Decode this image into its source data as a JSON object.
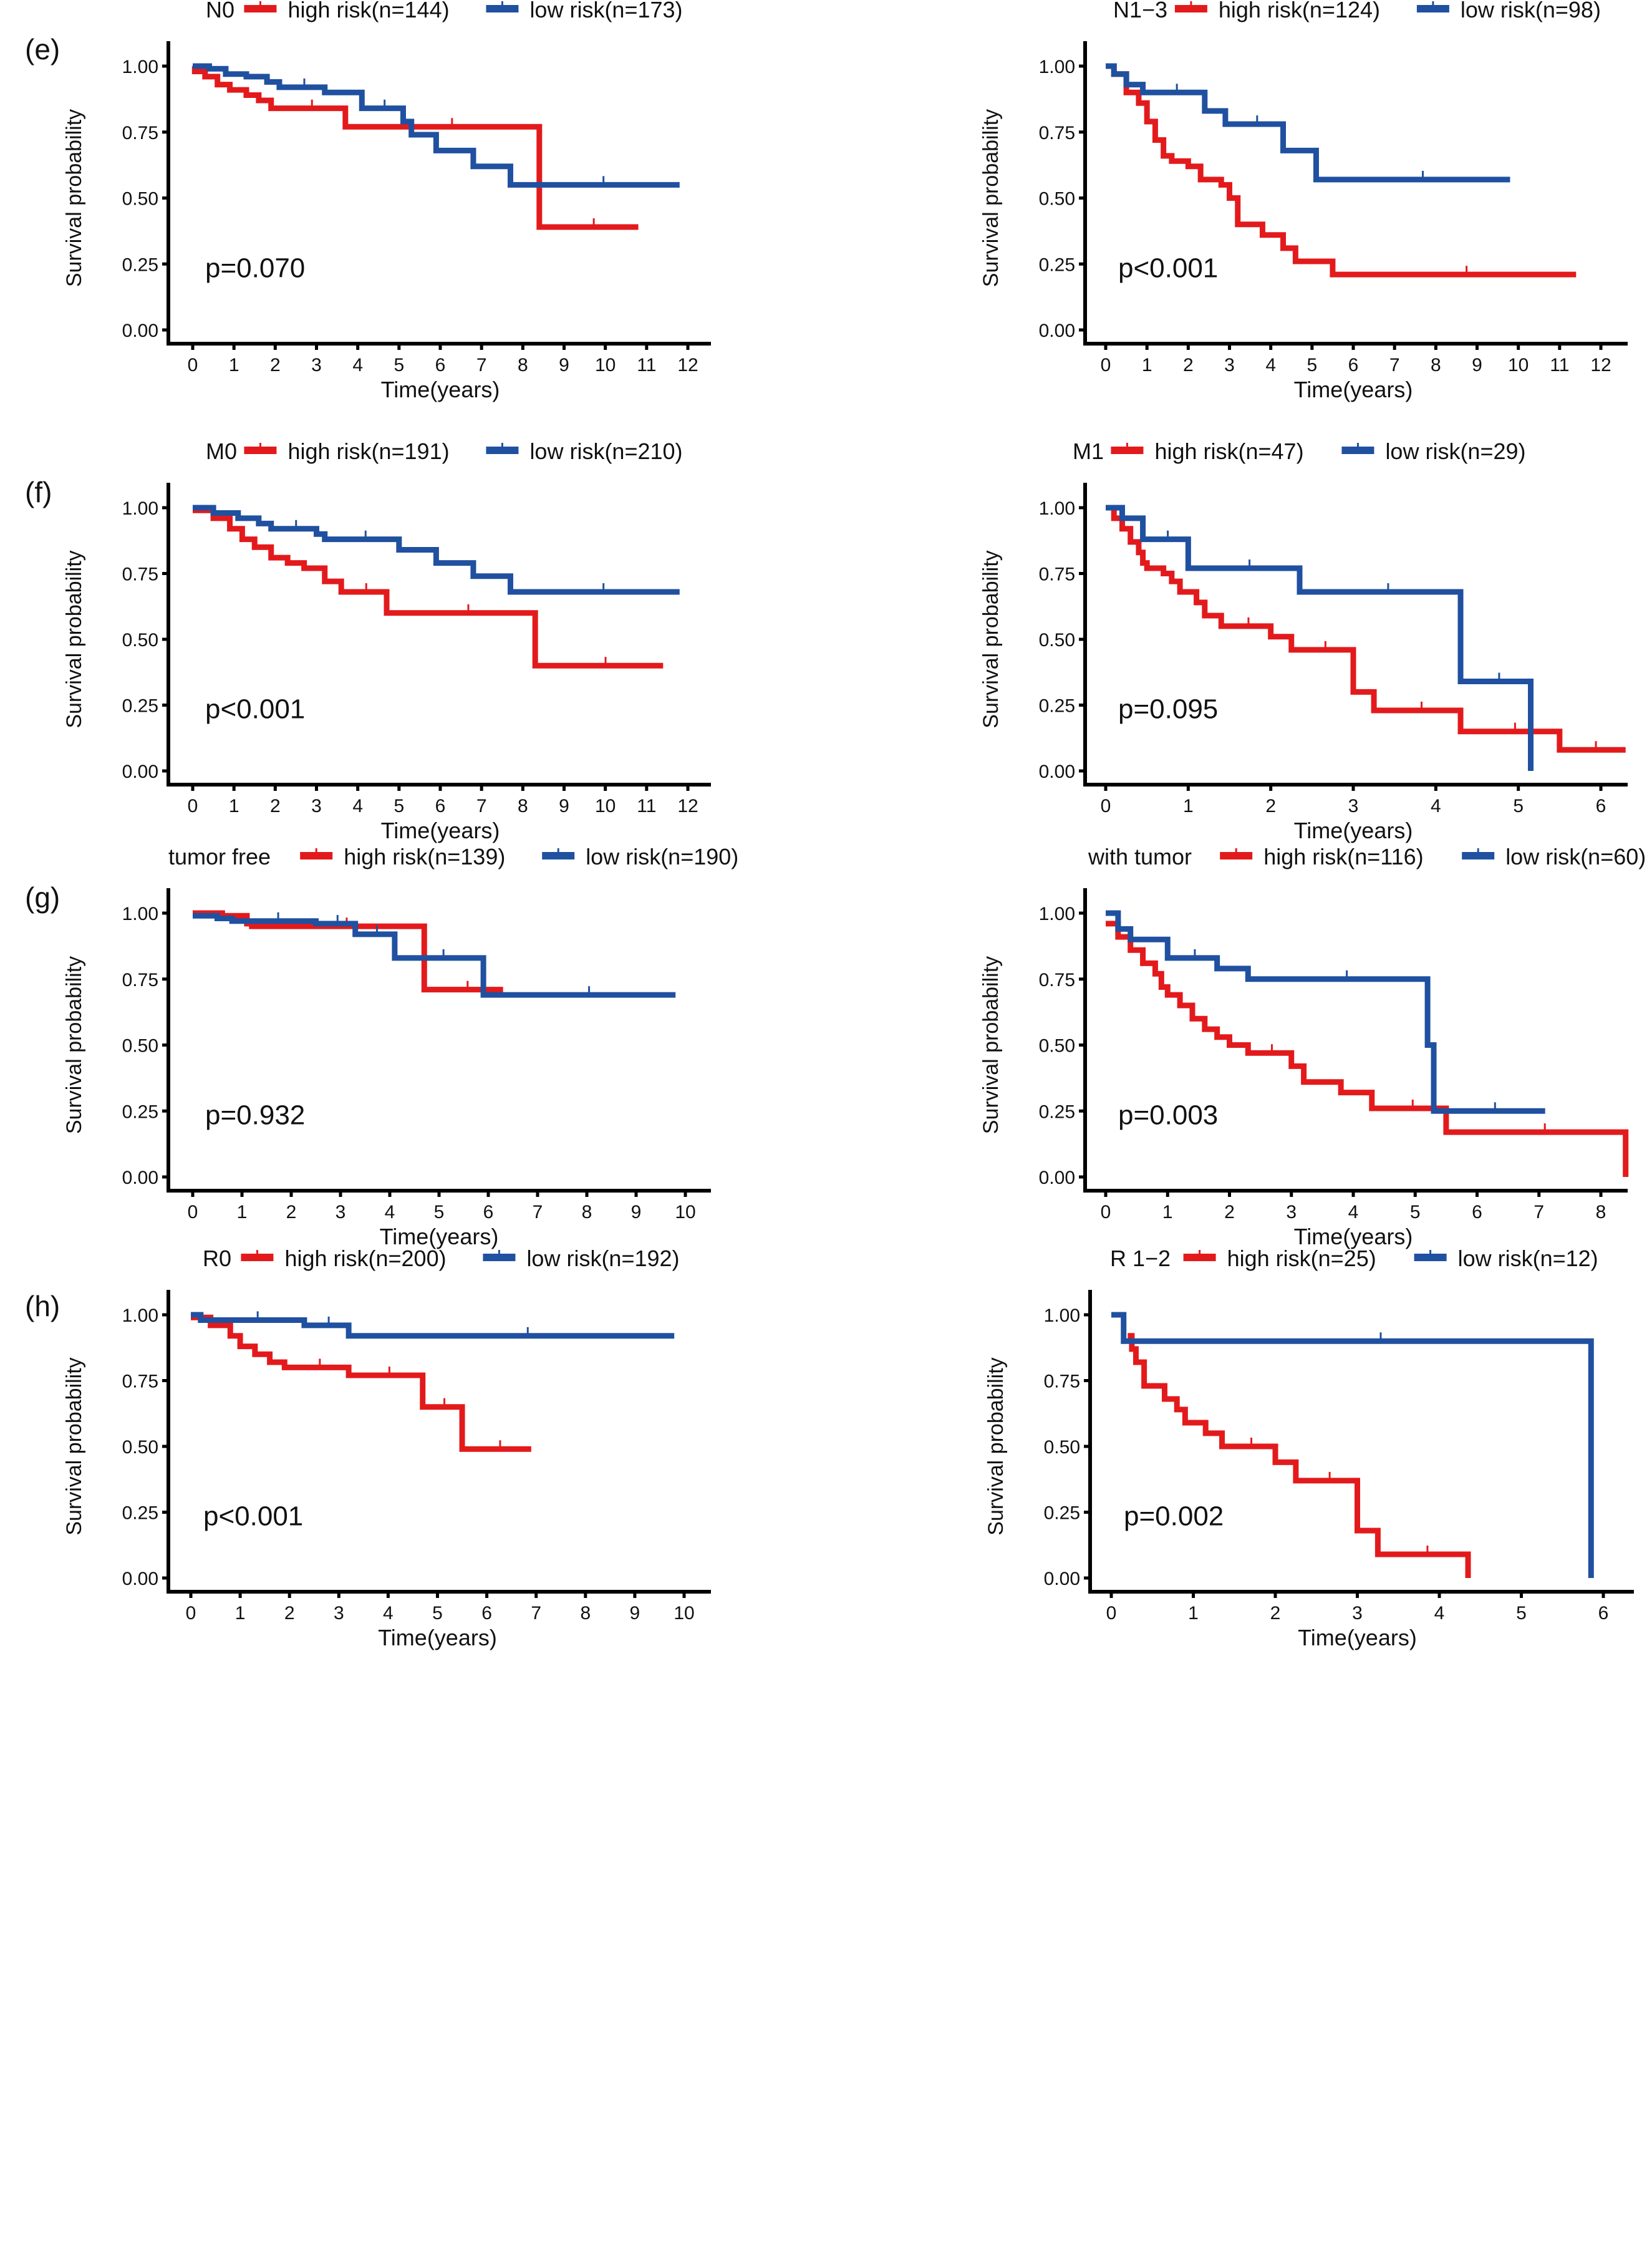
{
  "figure": {
    "panel_labels": [
      "(e)",
      "(f)",
      "(g)",
      "(h)"
    ],
    "colors": {
      "high_risk": "#E31A1C",
      "low_risk": "#2050A0",
      "axis": "#000000"
    }
  },
  "chart_data": [
    {
      "id": "N0",
      "panel": "(e)",
      "type": "line",
      "subtype": "kaplan-meier",
      "legend_title": "N0",
      "legend": [
        "high risk(n=144)",
        "low risk(n=173)"
      ],
      "p_value": "p=0.070",
      "xlabel": "Time(years)",
      "ylabel": "Survival probability",
      "xlim": [
        0,
        12
      ],
      "ylim": [
        0,
        1
      ],
      "xticks": [
        "0",
        "1",
        "2",
        "3",
        "4",
        "5",
        "6",
        "7",
        "8",
        "9",
        "10",
        "11",
        "12"
      ],
      "yticks": [
        "0.00",
        "0.25",
        "0.50",
        "0.75",
        "1.00"
      ],
      "series": [
        {
          "name": "high risk",
          "color": "#E31A1C",
          "steps": [
            [
              0,
              1.0
            ],
            [
              0.05,
              0.98
            ],
            [
              0.3,
              0.96
            ],
            [
              0.6,
              0.93
            ],
            [
              0.9,
              0.91
            ],
            [
              1.3,
              0.89
            ],
            [
              1.6,
              0.87
            ],
            [
              1.9,
              0.84
            ],
            [
              3.7,
              0.77
            ],
            [
              8.4,
              0.39
            ],
            [
              10.8,
              0.39
            ]
          ]
        },
        {
          "name": "low risk",
          "color": "#2050A0",
          "steps": [
            [
              0,
              1.0
            ],
            [
              0.4,
              0.99
            ],
            [
              0.8,
              0.97
            ],
            [
              1.3,
              0.96
            ],
            [
              1.8,
              0.94
            ],
            [
              2.1,
              0.92
            ],
            [
              3.2,
              0.9
            ],
            [
              4.1,
              0.84
            ],
            [
              5.1,
              0.79
            ],
            [
              5.3,
              0.74
            ],
            [
              5.9,
              0.68
            ],
            [
              6.8,
              0.62
            ],
            [
              7.7,
              0.55
            ],
            [
              11.8,
              0.55
            ]
          ]
        }
      ]
    },
    {
      "id": "N1-3",
      "panel": "(e)",
      "type": "line",
      "subtype": "kaplan-meier",
      "legend_title": "N1−3",
      "legend": [
        "high risk(n=124)",
        "low risk(n=98)"
      ],
      "p_value": "p<0.001",
      "xlabel": "Time(years)",
      "ylabel": "Survival probability",
      "xlim": [
        0,
        12
      ],
      "ylim": [
        0,
        1
      ],
      "xticks": [
        "0",
        "1",
        "2",
        "3",
        "4",
        "5",
        "6",
        "7",
        "8",
        "9",
        "10",
        "11",
        "12"
      ],
      "yticks": [
        "0.00",
        "0.25",
        "0.50",
        "0.75",
        "1.00"
      ],
      "series": [
        {
          "name": "high risk",
          "color": "#E31A1C",
          "steps": [
            [
              0,
              1.0
            ],
            [
              0.2,
              0.97
            ],
            [
              0.5,
              0.9
            ],
            [
              0.8,
              0.86
            ],
            [
              1.0,
              0.79
            ],
            [
              1.2,
              0.72
            ],
            [
              1.4,
              0.66
            ],
            [
              1.6,
              0.64
            ],
            [
              2.0,
              0.62
            ],
            [
              2.3,
              0.57
            ],
            [
              2.8,
              0.55
            ],
            [
              3.0,
              0.5
            ],
            [
              3.2,
              0.4
            ],
            [
              3.8,
              0.36
            ],
            [
              4.3,
              0.31
            ],
            [
              4.6,
              0.26
            ],
            [
              5.5,
              0.21
            ],
            [
              11.4,
              0.21
            ]
          ]
        },
        {
          "name": "low risk",
          "color": "#2050A0",
          "steps": [
            [
              0,
              1.0
            ],
            [
              0.2,
              0.97
            ],
            [
              0.5,
              0.93
            ],
            [
              0.9,
              0.9
            ],
            [
              2.4,
              0.83
            ],
            [
              2.9,
              0.78
            ],
            [
              4.3,
              0.68
            ],
            [
              5.1,
              0.57
            ],
            [
              9.8,
              0.57
            ]
          ]
        }
      ]
    },
    {
      "id": "M0",
      "panel": "(f)",
      "type": "line",
      "subtype": "kaplan-meier",
      "legend_title": "M0",
      "legend": [
        "high risk(n=191)",
        "low risk(n=210)"
      ],
      "p_value": "p<0.001",
      "xlabel": "Time(years)",
      "ylabel": "Survival probability",
      "xlim": [
        0,
        12
      ],
      "ylim": [
        0,
        1
      ],
      "xticks": [
        "0",
        "1",
        "2",
        "3",
        "4",
        "5",
        "6",
        "7",
        "8",
        "9",
        "10",
        "11",
        "12"
      ],
      "yticks": [
        "0.00",
        "0.25",
        "0.50",
        "0.75",
        "1.00"
      ],
      "series": [
        {
          "name": "high risk",
          "color": "#E31A1C",
          "steps": [
            [
              0,
              0.99
            ],
            [
              0.5,
              0.96
            ],
            [
              0.9,
              0.92
            ],
            [
              1.2,
              0.88
            ],
            [
              1.5,
              0.85
            ],
            [
              1.9,
              0.81
            ],
            [
              2.3,
              0.79
            ],
            [
              2.7,
              0.77
            ],
            [
              3.2,
              0.72
            ],
            [
              3.6,
              0.68
            ],
            [
              4.7,
              0.6
            ],
            [
              8.3,
              0.4
            ],
            [
              11.4,
              0.4
            ]
          ]
        },
        {
          "name": "low risk",
          "color": "#2050A0",
          "steps": [
            [
              0,
              1.0
            ],
            [
              0.5,
              0.98
            ],
            [
              1.1,
              0.96
            ],
            [
              1.6,
              0.94
            ],
            [
              1.9,
              0.92
            ],
            [
              3.0,
              0.9
            ],
            [
              3.2,
              0.88
            ],
            [
              5.0,
              0.84
            ],
            [
              5.9,
              0.79
            ],
            [
              6.8,
              0.74
            ],
            [
              7.7,
              0.68
            ],
            [
              11.8,
              0.68
            ]
          ]
        }
      ]
    },
    {
      "id": "M1",
      "panel": "(f)",
      "type": "line",
      "subtype": "kaplan-meier",
      "legend_title": "M1",
      "legend": [
        "high risk(n=47)",
        "low risk(n=29)"
      ],
      "p_value": "p=0.095",
      "xlabel": "Time(years)",
      "ylabel": "Survival probability",
      "xlim": [
        0,
        6.3
      ],
      "ylim": [
        0,
        1
      ],
      "xticks": [
        "0",
        "1",
        "2",
        "3",
        "4",
        "5",
        "6"
      ],
      "yticks": [
        "0.00",
        "0.25",
        "0.50",
        "0.75",
        "1.00"
      ],
      "series": [
        {
          "name": "high risk",
          "color": "#E31A1C",
          "steps": [
            [
              0,
              1.0
            ],
            [
              0.1,
              0.96
            ],
            [
              0.2,
              0.92
            ],
            [
              0.3,
              0.87
            ],
            [
              0.4,
              0.83
            ],
            [
              0.45,
              0.79
            ],
            [
              0.5,
              0.77
            ],
            [
              0.7,
              0.75
            ],
            [
              0.8,
              0.72
            ],
            [
              0.9,
              0.68
            ],
            [
              1.1,
              0.64
            ],
            [
              1.2,
              0.59
            ],
            [
              1.4,
              0.55
            ],
            [
              2.0,
              0.51
            ],
            [
              2.25,
              0.46
            ],
            [
              3.0,
              0.3
            ],
            [
              3.25,
              0.23
            ],
            [
              4.3,
              0.15
            ],
            [
              5.5,
              0.08
            ],
            [
              6.3,
              0.08
            ]
          ]
        },
        {
          "name": "low risk",
          "color": "#2050A0",
          "steps": [
            [
              0,
              1.0
            ],
            [
              0.2,
              0.96
            ],
            [
              0.45,
              0.88
            ],
            [
              1.0,
              0.77
            ],
            [
              2.35,
              0.68
            ],
            [
              4.3,
              0.34
            ],
            [
              5.15,
              0.0
            ]
          ]
        }
      ]
    },
    {
      "id": "tumor free",
      "panel": "(g)",
      "type": "line",
      "subtype": "kaplan-meier",
      "legend_title": "tumor free",
      "legend": [
        "high risk(n=139)",
        "low risk(n=190)"
      ],
      "p_value": "p=0.932",
      "xlabel": "Time(years)",
      "ylabel": "Survival probability",
      "xlim": [
        0,
        10
      ],
      "ylim": [
        0,
        1
      ],
      "xticks": [
        "0",
        "1",
        "2",
        "3",
        "4",
        "5",
        "6",
        "7",
        "8",
        "9",
        "10"
      ],
      "yticks": [
        "0.00",
        "0.25",
        "0.50",
        "0.75",
        "1.00"
      ],
      "series": [
        {
          "name": "high risk",
          "color": "#E31A1C",
          "steps": [
            [
              0,
              1.0
            ],
            [
              0.6,
              0.99
            ],
            [
              1.1,
              0.96
            ],
            [
              1.2,
              0.95
            ],
            [
              4.7,
              0.71
            ],
            [
              6.3,
              0.71
            ]
          ]
        },
        {
          "name": "low risk",
          "color": "#2050A0",
          "steps": [
            [
              0,
              0.99
            ],
            [
              0.5,
              0.98
            ],
            [
              0.8,
              0.97
            ],
            [
              2.5,
              0.96
            ],
            [
              3.3,
              0.92
            ],
            [
              4.1,
              0.83
            ],
            [
              5.9,
              0.69
            ],
            [
              9.8,
              0.69
            ]
          ]
        }
      ]
    },
    {
      "id": "with tumor",
      "panel": "(g)",
      "type": "line",
      "subtype": "kaplan-meier",
      "legend_title": "with tumor",
      "legend": [
        "high risk(n=116)",
        "low risk(n=60)"
      ],
      "p_value": "p=0.003",
      "xlabel": "Time(years)",
      "ylabel": "Survival probability",
      "xlim": [
        0,
        8.4
      ],
      "ylim": [
        0,
        1
      ],
      "xticks": [
        "0",
        "1",
        "2",
        "3",
        "4",
        "5",
        "6",
        "7",
        "8"
      ],
      "yticks": [
        "0.00",
        "0.25",
        "0.50",
        "0.75",
        "1.00"
      ],
      "series": [
        {
          "name": "high risk",
          "color": "#E31A1C",
          "steps": [
            [
              0,
              0.96
            ],
            [
              0.2,
              0.91
            ],
            [
              0.4,
              0.86
            ],
            [
              0.6,
              0.81
            ],
            [
              0.8,
              0.77
            ],
            [
              0.9,
              0.72
            ],
            [
              1.0,
              0.69
            ],
            [
              1.2,
              0.65
            ],
            [
              1.4,
              0.6
            ],
            [
              1.6,
              0.56
            ],
            [
              1.8,
              0.53
            ],
            [
              2.0,
              0.5
            ],
            [
              2.3,
              0.47
            ],
            [
              3.0,
              0.42
            ],
            [
              3.2,
              0.36
            ],
            [
              3.8,
              0.32
            ],
            [
              4.3,
              0.26
            ],
            [
              5.5,
              0.17
            ],
            [
              8.4,
              0.0
            ]
          ]
        },
        {
          "name": "low risk",
          "color": "#2050A0",
          "steps": [
            [
              0,
              1.0
            ],
            [
              0.2,
              0.94
            ],
            [
              0.4,
              0.9
            ],
            [
              1.0,
              0.83
            ],
            [
              1.8,
              0.79
            ],
            [
              2.3,
              0.75
            ],
            [
              5.2,
              0.5
            ],
            [
              5.3,
              0.25
            ],
            [
              7.1,
              0.25
            ]
          ]
        }
      ]
    },
    {
      "id": "R0",
      "panel": "(h)",
      "type": "line",
      "subtype": "kaplan-meier",
      "legend_title": "R0",
      "legend": [
        "high risk(n=200)",
        "low risk(n=192)"
      ],
      "p_value": "p<0.001",
      "xlabel": "Time(years)",
      "ylabel": "Survival probability",
      "xlim": [
        0,
        10
      ],
      "ylim": [
        0,
        1
      ],
      "xticks": [
        "0",
        "1",
        "2",
        "3",
        "4",
        "5",
        "6",
        "7",
        "8",
        "9",
        "10"
      ],
      "yticks": [
        "0.00",
        "0.25",
        "0.50",
        "0.75",
        "1.00"
      ],
      "series": [
        {
          "name": "high risk",
          "color": "#E31A1C",
          "steps": [
            [
              0,
              0.99
            ],
            [
              0.4,
              0.96
            ],
            [
              0.8,
              0.92
            ],
            [
              1.0,
              0.88
            ],
            [
              1.3,
              0.85
            ],
            [
              1.6,
              0.82
            ],
            [
              1.9,
              0.8
            ],
            [
              3.2,
              0.77
            ],
            [
              4.7,
              0.65
            ],
            [
              5.5,
              0.49
            ],
            [
              6.9,
              0.49
            ]
          ]
        },
        {
          "name": "low risk",
          "color": "#2050A0",
          "steps": [
            [
              0,
              1.0
            ],
            [
              0.2,
              0.98
            ],
            [
              2.3,
              0.96
            ],
            [
              3.2,
              0.92
            ],
            [
              9.8,
              0.92
            ]
          ]
        }
      ]
    },
    {
      "id": "R 1-2",
      "panel": "(h)",
      "type": "line",
      "subtype": "kaplan-meier",
      "legend_title": "R 1−2",
      "legend": [
        "high risk(n=25)",
        "low risk(n=12)"
      ],
      "p_value": "p=0.002",
      "xlabel": "Time(years)",
      "ylabel": "Survival probability",
      "xlim": [
        0,
        6.2
      ],
      "ylim": [
        0,
        1
      ],
      "xticks": [
        "0",
        "1",
        "2",
        "3",
        "4",
        "5",
        "6"
      ],
      "yticks": [
        "0.00",
        "0.25",
        "0.50",
        "0.75",
        "1.00"
      ],
      "series": [
        {
          "name": "high risk",
          "color": "#E31A1C",
          "steps": [
            [
              0.2,
              0.92
            ],
            [
              0.25,
              0.87
            ],
            [
              0.3,
              0.82
            ],
            [
              0.4,
              0.73
            ],
            [
              0.65,
              0.68
            ],
            [
              0.8,
              0.64
            ],
            [
              0.9,
              0.59
            ],
            [
              1.15,
              0.55
            ],
            [
              1.35,
              0.5
            ],
            [
              2.0,
              0.44
            ],
            [
              2.25,
              0.37
            ],
            [
              3.0,
              0.18
            ],
            [
              3.25,
              0.09
            ],
            [
              4.35,
              0.0
            ]
          ]
        },
        {
          "name": "low risk",
          "color": "#2050A0",
          "steps": [
            [
              0,
              1.0
            ],
            [
              0.15,
              0.9
            ],
            [
              5.85,
              0.0
            ]
          ]
        }
      ]
    }
  ]
}
